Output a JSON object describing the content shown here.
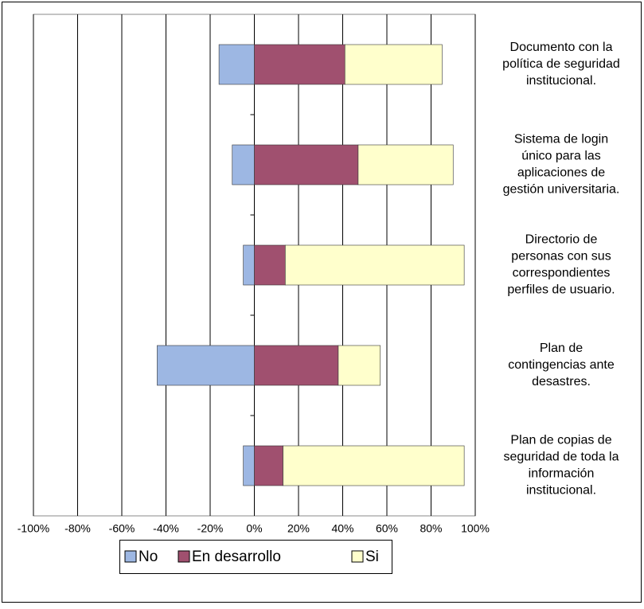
{
  "chart_data": {
    "type": "bar",
    "categories": [
      [
        "Documento con la",
        "política de seguridad",
        "institucional."
      ],
      [
        "Sistema de login",
        "único para las",
        "aplicaciones de",
        "gestión universitaria."
      ],
      [
        "Directorio de",
        "personas con sus",
        "correspondientes",
        "perfiles de usuario."
      ],
      [
        "Plan de",
        "contingencias ante",
        "desastres."
      ],
      [
        "Plan de copias de",
        "seguridad de toda la",
        "información",
        "institucional."
      ]
    ],
    "series": [
      {
        "name": "No",
        "color": "#9db7e3",
        "values": [
          -16,
          -10,
          -5,
          -44,
          -5
        ]
      },
      {
        "name": "En desarrollo",
        "color": "#a0506f",
        "values": [
          41,
          47,
          14,
          38,
          13
        ]
      },
      {
        "name": "Si",
        "color": "#ffffcc",
        "values": [
          44,
          43,
          81,
          19,
          82
        ]
      }
    ],
    "xlim": [
      -100,
      100
    ],
    "xticks": [
      {
        "value": -100,
        "label": "-100%"
      },
      {
        "value": -80,
        "label": "-80%"
      },
      {
        "value": -60,
        "label": "-60%"
      },
      {
        "value": -40,
        "label": "-40%"
      },
      {
        "value": -20,
        "label": "-20%"
      },
      {
        "value": 0,
        "label": "0%"
      },
      {
        "value": 20,
        "label": "20%"
      },
      {
        "value": 40,
        "label": "40%"
      },
      {
        "value": 60,
        "label": "60%"
      },
      {
        "value": 80,
        "label": "80%"
      },
      {
        "value": 100,
        "label": "100%"
      }
    ],
    "grid": true
  }
}
